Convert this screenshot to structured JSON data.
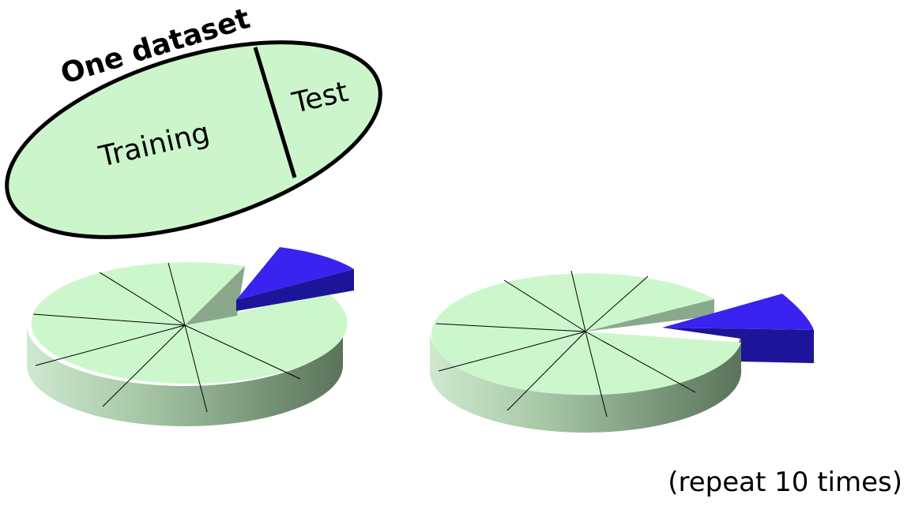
{
  "dataset": {
    "title": "One dataset",
    "training_label": "Training",
    "test_label": "Test"
  },
  "pies": [
    {
      "slices": 10,
      "held_out_slice": 1
    },
    {
      "slices": 10,
      "held_out_slice": 2
    }
  ],
  "footnote": "(repeat 10 times)",
  "colors": {
    "training_fill": "#ccf5cc",
    "pie_top": "#ccf7cc",
    "pie_side_light": "#a9cda9",
    "pie_side_dark": "#556e55",
    "test_top": "#3a22f0",
    "test_side": "#1c1599",
    "outline": "#000000"
  }
}
